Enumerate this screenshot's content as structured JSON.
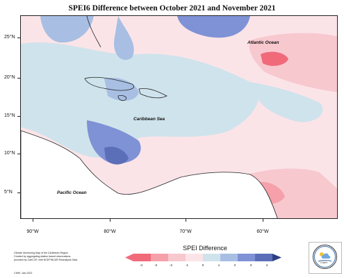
{
  "title": "SPEI6 Difference between October 2021 and November 2021",
  "map": {
    "region": "Caribbean",
    "labels": [
      "Atlantic Ocean",
      "Caribbean Sea",
      "Pacific Ocean"
    ],
    "latitude_ticks": [
      "25°N",
      "20°N",
      "15°N",
      "10°N",
      "5°N"
    ],
    "longitude_ticks": [
      "90°W",
      "80°W",
      "70°W",
      "60°W"
    ]
  },
  "legend": {
    "title": "SPEI Difference",
    "ticks": [
      "-4",
      "-3",
      "-2",
      "-1",
      "0",
      "1",
      "2",
      "3",
      "4"
    ],
    "colors": [
      "#f06a7a",
      "#f5a0aa",
      "#f8c8cf",
      "#fbe4e8",
      "#ffffff",
      "#cfe3ec",
      "#a8bfe3",
      "#7f92d6",
      "#5b6fb8"
    ]
  },
  "footer": {
    "text_lines": [
      "Climate Monitoring Map of the Caribbean Region",
      "Created by aggregating station based observations,",
      "provided by CariCOF, with NCEP/NCAR Reanalysis Data."
    ],
    "date": "CIMH -Jan-2022"
  },
  "logo": {
    "text": "CIMH"
  }
}
